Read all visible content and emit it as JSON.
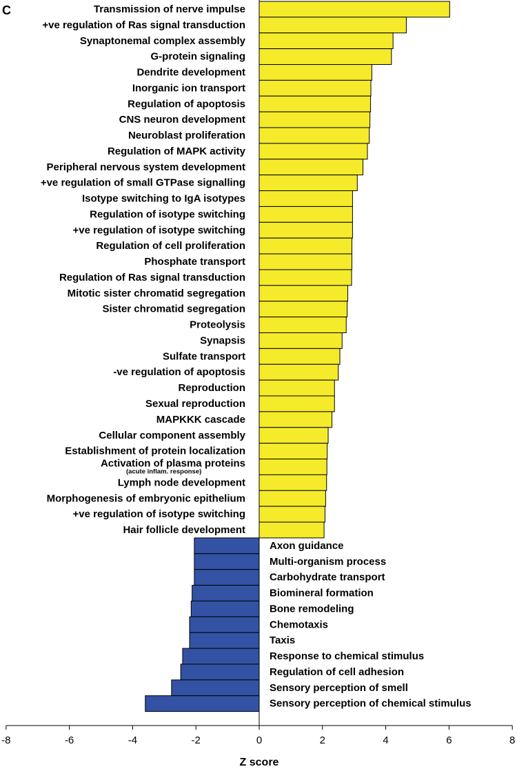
{
  "panel_label": "C",
  "colors": {
    "positive": "#f5eb2a",
    "negative": "#3452a4",
    "stroke": "#000000"
  },
  "chart_data": {
    "type": "bar",
    "orientation": "horizontal",
    "xlabel": "Z score",
    "xlim": [
      -8,
      8
    ],
    "xticks": [
      -8,
      -6,
      -4,
      -2,
      0,
      2,
      4,
      6,
      8
    ],
    "grid": false,
    "categories": [
      "Transmission of nerve impulse",
      "+ve regulation of Ras signal transduction",
      "Synaptonemal complex assembly",
      "G-protein signaling",
      "Dendrite development",
      "Inorganic ion transport",
      "Regulation of apoptosis",
      "CNS neuron development",
      "Neuroblast proliferation",
      "Regulation of MAPK activity",
      "Peripheral nervous system development",
      "+ve regulation of small GTPase signalling",
      "Isotype switching to IgA isotypes",
      "Regulation of isotype switching",
      "+ve regulation of isotype switching",
      "Regulation of cell proliferation",
      "Phosphate transport",
      "Regulation of Ras signal transduction",
      "Mitotic sister chromatid segregation",
      "Sister chromatid segregation",
      "Proteolysis",
      "Synapsis",
      "Sulfate transport",
      "-ve regulation of apoptosis",
      "Reproduction",
      "Sexual reproduction",
      "MAPKKK cascade",
      "Cellular component assembly",
      "Establishment of protein localization",
      "Activation of plasma proteins",
      "Lymph node development",
      "Morphogenesis of embryonic epithelium",
      "+ve regulation of isotype switching",
      "Hair follicle development",
      "Axon guidance",
      "Multi-organism process",
      "Carbohydrate transport",
      "Biomineral formation",
      "Bone remodeling",
      "Chemotaxis",
      "Taxis",
      "Response to chemical stimulus",
      "Regulation of cell adhesion",
      "Sensory perception of smell",
      "Sensory perception of chemical stimulus"
    ],
    "annotations": {
      "29": "(acute inflam. response)"
    },
    "values": [
      6.02,
      4.65,
      4.23,
      4.18,
      3.56,
      3.53,
      3.52,
      3.5,
      3.48,
      3.42,
      3.28,
      3.1,
      2.95,
      2.95,
      2.95,
      2.93,
      2.93,
      2.92,
      2.8,
      2.78,
      2.75,
      2.62,
      2.55,
      2.5,
      2.38,
      2.38,
      2.3,
      2.18,
      2.15,
      2.14,
      2.13,
      2.1,
      2.08,
      2.05,
      -2.05,
      -2.05,
      -2.05,
      -2.12,
      -2.15,
      -2.2,
      -2.2,
      -2.42,
      -2.48,
      -2.77,
      -3.6
    ]
  }
}
